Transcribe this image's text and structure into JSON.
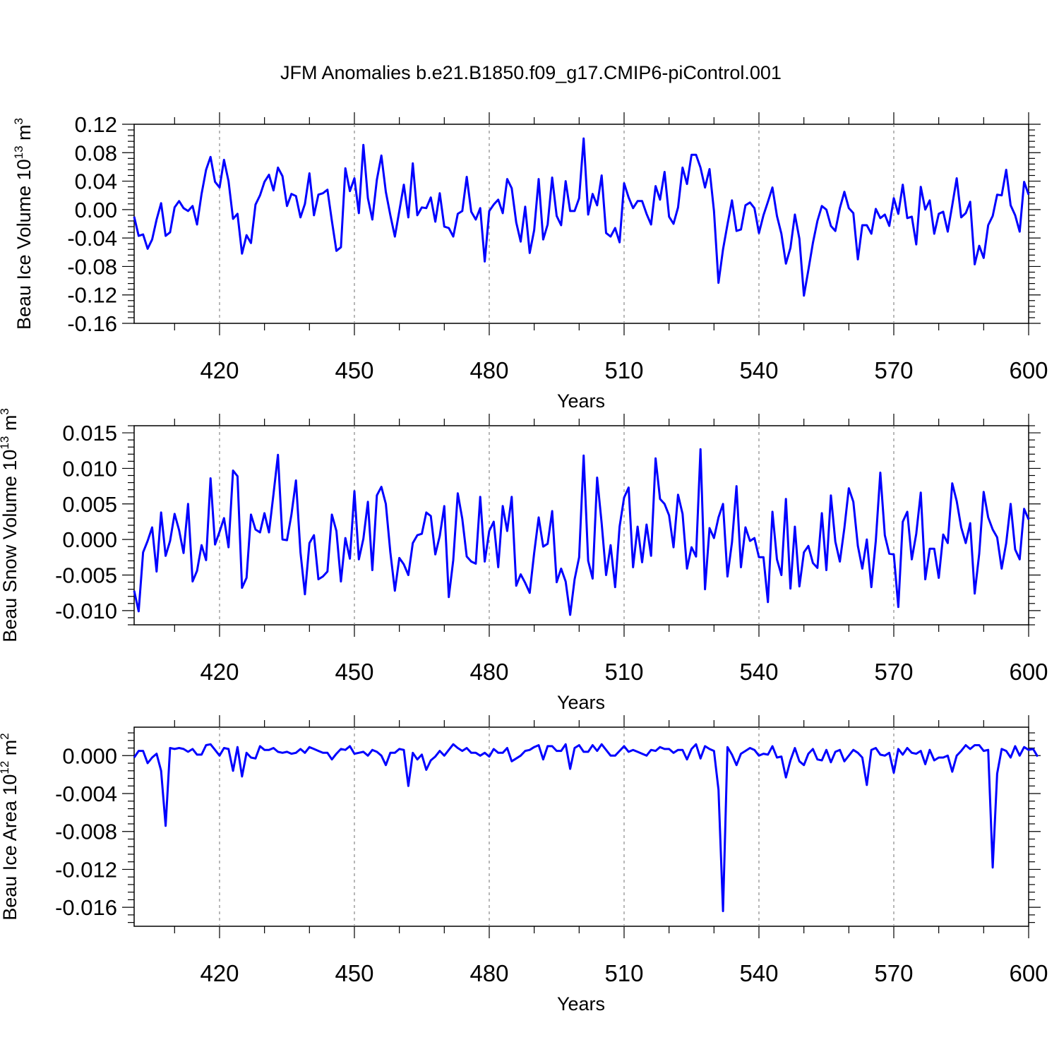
{
  "title": "JFM Anomalies b.e21.B1850.f09_g17.CMIP6-piControl.001",
  "colors": {
    "series": "#0000ff",
    "frame": "#000000",
    "grid": "#888888"
  },
  "chart_data": [
    {
      "type": "line",
      "title": "JFM Anomalies b.e21.B1850.f09_g17.CMIP6-piControl.001",
      "xlabel": "Years",
      "ylabel": "Beau Ice Volume 10^13 m^3",
      "ylabel_base": "Beau Ice Volume 10",
      "ylabel_exp": "13",
      "ylabel_unit": "m",
      "ylabel_unit_exp": "3",
      "xlim": [
        401,
        600
      ],
      "ylim": [
        -0.16,
        0.12
      ],
      "xticks": [
        420,
        450,
        480,
        510,
        540,
        570,
        600
      ],
      "yticks": [
        -0.16,
        -0.12,
        -0.08,
        -0.04,
        0.0,
        0.04,
        0.08,
        0.12
      ],
      "ytick_labels": [
        "-0.16",
        "-0.12",
        "-0.08",
        "-0.04",
        "0.00",
        "0.04",
        "0.08",
        "0.12"
      ],
      "grid_x": true,
      "x_start": 401,
      "values": [
        -0.01,
        -0.037,
        -0.035,
        -0.055,
        -0.042,
        -0.014,
        0.009,
        -0.037,
        -0.032,
        0.003,
        0.012,
        0.002,
        -0.002,
        0.005,
        -0.021,
        0.022,
        0.056,
        0.074,
        0.039,
        0.031,
        0.07,
        0.04,
        -0.013,
        -0.006,
        -0.062,
        -0.036,
        -0.047,
        0.007,
        0.02,
        0.039,
        0.049,
        0.027,
        0.059,
        0.047,
        0.005,
        0.022,
        0.019,
        -0.011,
        0.008,
        0.051,
        -0.008,
        0.021,
        0.023,
        0.028,
        -0.016,
        -0.058,
        -0.053,
        0.058,
        0.026,
        0.044,
        -0.005,
        0.091,
        0.016,
        -0.014,
        0.042,
        0.076,
        0.025,
        -0.008,
        -0.038,
        -0.002,
        0.035,
        -0.011,
        0.065,
        -0.008,
        0.003,
        0.002,
        0.017,
        -0.017,
        0.023,
        -0.024,
        -0.026,
        -0.038,
        -0.006,
        -0.002,
        0.046,
        -0.003,
        -0.014,
        0.002,
        -0.073,
        -0.002,
        0.007,
        0.014,
        -0.005,
        0.043,
        0.03,
        -0.018,
        -0.045,
        0.004,
        -0.061,
        -0.029,
        0.043,
        -0.042,
        -0.021,
        0.045,
        -0.009,
        -0.022,
        0.04,
        -0.002,
        -0.002,
        0.016,
        0.1,
        -0.007,
        0.022,
        0.006,
        0.048,
        -0.033,
        -0.038,
        -0.026,
        -0.046,
        0.037,
        0.017,
        0.002,
        0.012,
        0.012,
        -0.006,
        -0.021,
        0.033,
        0.014,
        0.053,
        -0.01,
        -0.02,
        0.003,
        0.059,
        0.036,
        0.077,
        0.077,
        0.059,
        0.031,
        0.057,
        -0.002,
        -0.103,
        -0.056,
        -0.021,
        0.013,
        -0.03,
        -0.028,
        0.006,
        0.01,
        0.002,
        -0.033,
        -0.008,
        0.011,
        0.031,
        -0.009,
        -0.034,
        -0.076,
        -0.054,
        -0.007,
        -0.041,
        -0.121,
        -0.085,
        -0.047,
        -0.016,
        0.005,
        0.0,
        -0.023,
        -0.03,
        0.002,
        0.025,
        0.002,
        -0.005,
        -0.07,
        -0.022,
        -0.022,
        -0.034,
        0.001,
        -0.012,
        -0.007,
        -0.023,
        0.016,
        -0.006,
        0.035,
        -0.012,
        -0.01,
        -0.049,
        0.032,
        0.0,
        0.013,
        -0.034,
        -0.006,
        -0.003,
        -0.031,
        0.006,
        0.044,
        -0.011,
        -0.005,
        0.011,
        -0.077,
        -0.051,
        -0.068,
        -0.022,
        -0.009,
        0.021,
        0.02,
        0.056,
        0.006,
        -0.008,
        -0.031,
        0.039,
        0.021
      ]
    },
    {
      "type": "line",
      "xlabel": "Years",
      "ylabel": "Beau Snow Volume 10^13 m^3",
      "ylabel_base": "Beau Snow Volume 10",
      "ylabel_exp": "13",
      "ylabel_unit": "m",
      "ylabel_unit_exp": "3",
      "xlim": [
        401,
        600
      ],
      "ylim": [
        -0.012,
        0.016
      ],
      "xticks": [
        420,
        450,
        480,
        510,
        540,
        570,
        600
      ],
      "yticks": [
        -0.01,
        -0.005,
        0.0,
        0.005,
        0.01,
        0.015
      ],
      "ytick_labels": [
        "-0.010",
        "-0.005",
        "0.000",
        "0.005",
        "0.010",
        "0.015"
      ],
      "grid_x": true,
      "x_start": 401,
      "values": [
        -0.0072,
        -0.0101,
        -0.0018,
        -0.0002,
        0.0017,
        -0.0045,
        0.0038,
        -0.0023,
        -0.0002,
        0.0036,
        0.0013,
        -0.0019,
        0.005,
        -0.0059,
        -0.0044,
        -0.0008,
        -0.0029,
        0.0086,
        -0.0007,
        0.0011,
        0.003,
        -0.0011,
        0.0097,
        0.0089,
        -0.0068,
        -0.0054,
        0.0035,
        0.0014,
        0.001,
        0.0037,
        0.001,
        0.0064,
        0.0119,
        0.0,
        -0.0001,
        0.0035,
        0.0083,
        -0.0018,
        -0.0077,
        -0.0005,
        0.0006,
        -0.0056,
        -0.0052,
        -0.0045,
        0.0035,
        0.0012,
        -0.0059,
        0.0002,
        -0.0027,
        0.0068,
        -0.0028,
        0.0001,
        0.0053,
        -0.0043,
        0.0062,
        0.0074,
        0.005,
        -0.0018,
        -0.0072,
        -0.0026,
        -0.0035,
        -0.005,
        -0.0005,
        0.0006,
        0.0008,
        0.0038,
        0.0033,
        -0.0021,
        0.0005,
        0.0047,
        -0.0081,
        -0.0029,
        0.0065,
        0.0029,
        -0.0024,
        -0.0031,
        -0.0034,
        0.006,
        -0.0031,
        0.0012,
        0.0025,
        -0.0039,
        0.0047,
        0.0012,
        0.006,
        -0.0065,
        -0.0049,
        -0.0061,
        -0.0075,
        -0.0019,
        0.0031,
        -0.001,
        -0.0006,
        0.004,
        -0.006,
        -0.0041,
        -0.0059,
        -0.0106,
        -0.0056,
        -0.0025,
        0.0118,
        -0.003,
        -0.0055,
        0.0087,
        0.0023,
        -0.005,
        -0.0008,
        -0.0067,
        0.0018,
        0.0059,
        0.0073,
        -0.0039,
        0.0018,
        -0.0032,
        0.0021,
        -0.0023,
        0.0114,
        0.0057,
        0.005,
        0.0034,
        -0.0011,
        0.0063,
        0.0036,
        -0.0041,
        -0.0011,
        -0.0024,
        0.0127,
        -0.007,
        0.0016,
        0.0002,
        0.0031,
        0.005,
        -0.0052,
        -0.0004,
        0.0075,
        -0.0039,
        0.0017,
        -0.0002,
        0.0002,
        -0.0025,
        -0.0025,
        -0.0088,
        0.0039,
        -0.0028,
        -0.005,
        0.0057,
        -0.0069,
        0.0018,
        -0.0066,
        -0.0018,
        -0.0009,
        -0.0033,
        -0.004,
        0.0037,
        -0.0043,
        0.0062,
        -0.0003,
        -0.0031,
        0.0016,
        0.0072,
        0.0053,
        -0.0009,
        -0.0041,
        0.0,
        -0.0067,
        -0.0002,
        0.0094,
        0.0006,
        -0.002,
        -0.0021,
        -0.0095,
        0.0025,
        0.0039,
        -0.0028,
        0.0008,
        0.0066,
        -0.0056,
        -0.0013,
        -0.0013,
        -0.0054,
        0.0007,
        -0.0005,
        0.0079,
        0.0054,
        0.0017,
        -0.0005,
        0.0023,
        -0.0076,
        -0.002,
        0.0067,
        0.0031,
        0.0014,
        0.0003,
        -0.0041,
        -0.0005,
        0.005,
        -0.0014,
        -0.0028,
        0.0043,
        0.0028
      ]
    },
    {
      "type": "line",
      "xlabel": "Years",
      "ylabel": "Beau Ice Area 10^12 m^2",
      "ylabel_base": "Beau Ice Area 10",
      "ylabel_exp": "12",
      "ylabel_unit": "m",
      "ylabel_unit_exp": "2",
      "xlim": [
        401,
        600
      ],
      "ylim": [
        -0.018,
        0.003
      ],
      "xticks": [
        420,
        450,
        480,
        510,
        540,
        570,
        600
      ],
      "yticks": [
        -0.016,
        -0.012,
        -0.008,
        -0.004,
        0.0
      ],
      "ytick_labels": [
        "-0.016",
        "-0.012",
        "-0.008",
        "-0.004",
        "0.000"
      ],
      "grid_x": true,
      "x_start": 401,
      "values": [
        -0.0002,
        0.0005,
        0.0005,
        -0.0008,
        -0.0002,
        0.0002,
        -0.0016,
        -0.0074,
        0.0008,
        0.0007,
        0.0008,
        0.0007,
        0.0004,
        0.0007,
        0.0001,
        0.0001,
        0.0011,
        0.0012,
        0.0006,
        0.0,
        0.0008,
        0.0007,
        -0.0016,
        0.0009,
        -0.0022,
        0.0003,
        -0.0002,
        -0.0003,
        0.001,
        0.0006,
        0.0006,
        0.0008,
        0.0004,
        0.0003,
        0.0004,
        0.0002,
        0.0003,
        0.0007,
        0.0003,
        0.0009,
        0.0007,
        0.0005,
        0.0003,
        0.0003,
        -0.0004,
        0.0002,
        0.0007,
        0.0006,
        0.001,
        0.0002,
        0.0003,
        0.0004,
        0.0,
        0.0006,
        0.0004,
        0.0,
        -0.001,
        0.0003,
        0.0003,
        0.0007,
        0.0006,
        -0.0032,
        0.0003,
        -0.0004,
        0.0001,
        -0.0015,
        -0.0005,
        -0.0001,
        0.0005,
        0.0,
        0.0006,
        0.0012,
        0.0008,
        0.0005,
        0.0008,
        0.0003,
        0.0003,
        0.0,
        0.0003,
        -0.0001,
        0.0007,
        0.0003,
        0.0003,
        0.0008,
        -0.0006,
        -0.0003,
        0.0,
        0.0005,
        0.0006,
        0.0009,
        0.0011,
        -0.0004,
        0.001,
        0.001,
        0.0005,
        0.0005,
        0.0012,
        -0.0014,
        0.0008,
        0.0011,
        0.0004,
        0.0004,
        0.0011,
        0.0005,
        0.0012,
        0.0006,
        0.0,
        0.0,
        0.0005,
        0.001,
        0.0004,
        0.0006,
        0.0004,
        0.0002,
        0.0,
        0.0006,
        0.0005,
        0.0009,
        0.0007,
        0.0007,
        0.0003,
        0.0006,
        0.0006,
        -0.0004,
        0.0007,
        0.0012,
        -0.0003,
        0.001,
        0.0007,
        0.0005,
        -0.0036,
        -0.0164,
        0.0009,
        0.0001,
        -0.001,
        0.0002,
        0.0005,
        0.0008,
        0.0006,
        0.0,
        0.0002,
        0.0001,
        0.001,
        -0.0002,
        -0.0001,
        -0.0023,
        -0.0005,
        0.0008,
        -0.0006,
        -0.001,
        0.0002,
        0.0007,
        -0.0004,
        -0.0005,
        0.0006,
        -0.0007,
        0.0004,
        0.0006,
        -0.0006,
        0.0,
        0.0006,
        0.0003,
        -0.0002,
        -0.0031,
        0.0006,
        0.0008,
        0.0001,
        0.0,
        0.0003,
        -0.0018,
        0.0007,
        0.0001,
        0.0008,
        0.0003,
        0.0002,
        0.0005,
        -0.0009,
        0.0006,
        -0.0005,
        -0.0002,
        -0.0002,
        0.0,
        -0.0017,
        0.0,
        0.0005,
        0.0011,
        0.0007,
        0.0011,
        0.0011,
        0.0005,
        0.0006,
        -0.0118,
        -0.0019,
        0.0007,
        0.0005,
        -0.0002,
        0.001,
        0.0,
        0.0009,
        0.0006,
        0.0007,
        -0.0001
      ]
    }
  ]
}
